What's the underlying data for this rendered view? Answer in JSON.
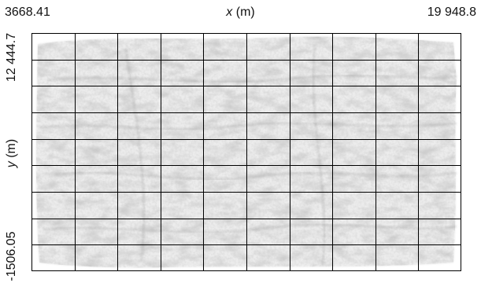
{
  "chart_data": {
    "type": "heatmap",
    "title": "",
    "x_axis": {
      "var": "x",
      "unit": "(m)",
      "min_label": "3668.41",
      "max_label": "19 948.8",
      "range": [
        3668.41,
        19948.8
      ]
    },
    "y_axis": {
      "var": "y",
      "unit": "(m)",
      "min_label": "-1506.05",
      "max_label": "12 444.7",
      "range": [
        -1506.05,
        12444.7
      ]
    },
    "grid": {
      "on": true,
      "columns": 10,
      "rows": 9
    },
    "colors": {
      "background": "#ffffff",
      "texture": "#9a9a9a",
      "grid": "#000000"
    }
  }
}
